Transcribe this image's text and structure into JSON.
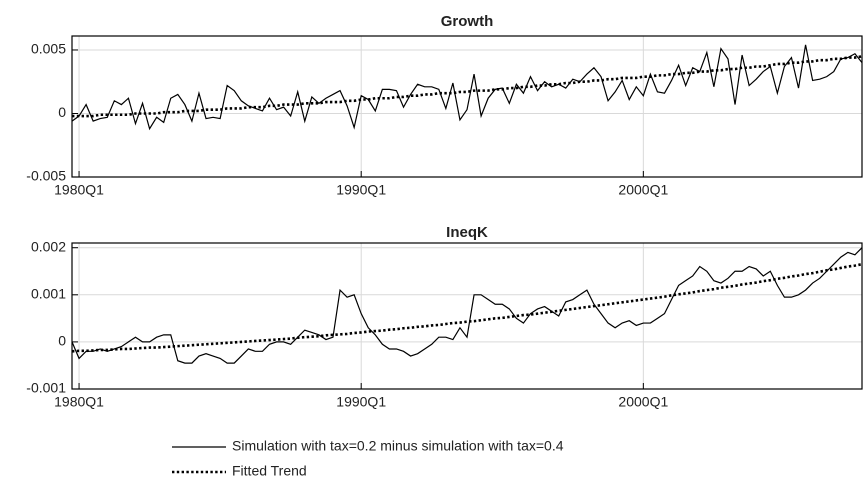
{
  "chart_data": [
    {
      "type": "line",
      "title": "Growth",
      "x": [
        1979.75,
        1980,
        1980.25,
        1980.5,
        1980.75,
        1981,
        1981.25,
        1981.5,
        1981.75,
        1982,
        1982.25,
        1982.5,
        1982.75,
        1983,
        1983.25,
        1983.5,
        1983.75,
        1984,
        1984.25,
        1984.5,
        1984.75,
        1985,
        1985.25,
        1985.5,
        1985.75,
        1986,
        1986.25,
        1986.5,
        1986.75,
        1987,
        1987.25,
        1987.5,
        1987.75,
        1988,
        1988.25,
        1988.5,
        1988.75,
        1989,
        1989.25,
        1989.5,
        1989.75,
        1990,
        1990.25,
        1990.5,
        1990.75,
        1991,
        1991.25,
        1991.5,
        1991.75,
        1992,
        1992.25,
        1992.5,
        1992.75,
        1993,
        1993.25,
        1993.5,
        1993.75,
        1994,
        1994.25,
        1994.5,
        1994.75,
        1995,
        1995.25,
        1995.5,
        1995.75,
        1996,
        1996.25,
        1996.5,
        1996.75,
        1997,
        1997.25,
        1997.5,
        1997.75,
        1998,
        1998.25,
        1998.5,
        1998.75,
        1999,
        1999.25,
        1999.5,
        1999.75,
        2000,
        2000.25,
        2000.5,
        2000.75,
        2001,
        2001.25,
        2001.5,
        2001.75,
        2002,
        2002.25,
        2002.5,
        2002.75,
        2003,
        2003.25,
        2003.5,
        2003.75,
        2004,
        2004.25,
        2004.5,
        2004.75,
        2005,
        2005.25,
        2005.5,
        2005.75,
        2006,
        2006.25,
        2006.5,
        2006.75,
        2007,
        2007.25,
        2007.5,
        2007.75
      ],
      "xlim": [
        1979.75,
        2007.75
      ],
      "xticks": [
        {
          "value": 1980,
          "label": "1980Q1"
        },
        {
          "value": 1990,
          "label": "1990Q1"
        },
        {
          "value": 2000,
          "label": "2000Q1"
        }
      ],
      "ylim": [
        -0.005,
        0.0061
      ],
      "yticks": [
        -0.005,
        0,
        0.005
      ],
      "grid": true,
      "series": [
        {
          "name": "Simulation with tax=0.2 minus simulation with tax=0.4",
          "color": "#000000",
          "style": "solid",
          "values": [
            -0.0006,
            -0.0002,
            0.0007,
            -0.0006,
            -0.0004,
            -0.0003,
            0.001,
            0.0007,
            0.0012,
            -0.0008,
            0.0008,
            -0.0012,
            -0.0003,
            -0.0007,
            0.0012,
            0.0015,
            0.0007,
            -0.0006,
            0.0016,
            -0.0004,
            -0.0003,
            -0.0004,
            0.0022,
            0.0018,
            0.001,
            0.0006,
            0.0004,
            0.0002,
            0.0012,
            0.0003,
            0.0005,
            -0.0002,
            0.0017,
            -0.0006,
            0.0013,
            0.0008,
            0.0012,
            0.0015,
            0.0018,
            0.0006,
            -0.0011,
            0.0014,
            0.0011,
            0.0002,
            0.0019,
            0.0019,
            0.0018,
            0.0005,
            0.0015,
            0.0023,
            0.0021,
            0.0021,
            0.0019,
            0.0004,
            0.0024,
            -0.0005,
            0.0003,
            0.0031,
            -0.0002,
            0.0012,
            0.0019,
            0.002,
            0.0008,
            0.0023,
            0.0016,
            0.0029,
            0.0018,
            0.0025,
            0.0021,
            0.0023,
            0.002,
            0.0027,
            0.0025,
            0.0031,
            0.0036,
            0.0029,
            0.001,
            0.0017,
            0.0026,
            0.0011,
            0.0021,
            0.0014,
            0.0031,
            0.0017,
            0.0016,
            0.0026,
            0.0038,
            0.0022,
            0.0036,
            0.0033,
            0.0048,
            0.0021,
            0.0051,
            0.0043,
            0.0007,
            0.0046,
            0.0022,
            0.0027,
            0.0033,
            0.0037,
            0.0016,
            0.0037,
            0.0044,
            0.002,
            0.0054,
            0.0026,
            0.0027,
            0.0029,
            0.0033,
            0.0043,
            0.0044,
            0.0047,
            0.004
          ]
        },
        {
          "name": "Fitted Trend",
          "color": "#000000",
          "style": "dotted",
          "values": [
            -0.0002,
            -0.0002,
            -0.0002,
            -0.0002,
            -0.0001,
            -0.0001,
            -0.0001,
            -0.0001,
            -0.0001,
            0.0,
            0.0,
            0.0,
            0.0,
            0.0001,
            0.0001,
            0.0001,
            0.0002,
            0.0002,
            0.0002,
            0.0003,
            0.0003,
            0.0003,
            0.0004,
            0.0004,
            0.0004,
            0.0005,
            0.0005,
            0.0005,
            0.0006,
            0.0006,
            0.0007,
            0.0007,
            0.0007,
            0.0008,
            0.0008,
            0.0008,
            0.0009,
            0.0009,
            0.0009,
            0.001,
            0.001,
            0.0011,
            0.0011,
            0.0012,
            0.0012,
            0.0012,
            0.0013,
            0.0013,
            0.0014,
            0.0014,
            0.0015,
            0.0015,
            0.0016,
            0.0016,
            0.0016,
            0.0017,
            0.0017,
            0.0018,
            0.0018,
            0.0018,
            0.0019,
            0.0019,
            0.002,
            0.002,
            0.0021,
            0.0021,
            0.0022,
            0.0022,
            0.0023,
            0.0023,
            0.0024,
            0.0024,
            0.0025,
            0.0025,
            0.0026,
            0.0026,
            0.0027,
            0.0027,
            0.0028,
            0.0028,
            0.0028,
            0.0029,
            0.0029,
            0.003,
            0.003,
            0.0031,
            0.0031,
            0.0032,
            0.0032,
            0.0033,
            0.0033,
            0.0034,
            0.0034,
            0.0035,
            0.0035,
            0.0036,
            0.0036,
            0.0037,
            0.0037,
            0.0038,
            0.0039,
            0.0039,
            0.004,
            0.004,
            0.0041,
            0.0041,
            0.0042,
            0.0042,
            0.0043,
            0.0043,
            0.0044,
            0.0044,
            0.0045
          ]
        }
      ]
    },
    {
      "type": "line",
      "title": "IneqK",
      "x": [
        1979.75,
        1980,
        1980.25,
        1980.5,
        1980.75,
        1981,
        1981.25,
        1981.5,
        1981.75,
        1982,
        1982.25,
        1982.5,
        1982.75,
        1983,
        1983.25,
        1983.5,
        1983.75,
        1984,
        1984.25,
        1984.5,
        1984.75,
        1985,
        1985.25,
        1985.5,
        1985.75,
        1986,
        1986.25,
        1986.5,
        1986.75,
        1987,
        1987.25,
        1987.5,
        1987.75,
        1988,
        1988.25,
        1988.5,
        1988.75,
        1989,
        1989.25,
        1989.5,
        1989.75,
        1990,
        1990.25,
        1990.5,
        1990.75,
        1991,
        1991.25,
        1991.5,
        1991.75,
        1992,
        1992.25,
        1992.5,
        1992.75,
        1993,
        1993.25,
        1993.5,
        1993.75,
        1994,
        1994.25,
        1994.5,
        1994.75,
        1995,
        1995.25,
        1995.5,
        1995.75,
        1996,
        1996.25,
        1996.5,
        1996.75,
        1997,
        1997.25,
        1997.5,
        1997.75,
        1998,
        1998.25,
        1998.5,
        1998.75,
        1999,
        1999.25,
        1999.5,
        1999.75,
        2000,
        2000.25,
        2000.5,
        2000.75,
        2001,
        2001.25,
        2001.5,
        2001.75,
        2002,
        2002.25,
        2002.5,
        2002.75,
        2003,
        2003.25,
        2003.5,
        2003.75,
        2004,
        2004.25,
        2004.5,
        2004.75,
        2005,
        2005.25,
        2005.5,
        2005.75,
        2006,
        2006.25,
        2006.5,
        2006.75,
        2007,
        2007.25,
        2007.5,
        2007.75
      ],
      "xlim": [
        1979.75,
        2007.75
      ],
      "xticks": [
        {
          "value": 1980,
          "label": "1980Q1"
        },
        {
          "value": 1990,
          "label": "1990Q1"
        },
        {
          "value": 2000,
          "label": "2000Q1"
        }
      ],
      "ylim": [
        -0.001,
        0.0021
      ],
      "yticks": [
        -0.001,
        0,
        0.001,
        0.002
      ],
      "grid": true,
      "series": [
        {
          "color": "#000000",
          "style": "solid",
          "values": [
            0,
            -0.00035,
            -0.0002,
            -0.0002,
            -0.00015,
            -0.0002,
            -0.00015,
            -0.0001,
            0,
            0.0001,
            0,
            0,
            0.0001,
            0.00015,
            0.00015,
            -0.0004,
            -0.00045,
            -0.00045,
            -0.0003,
            -0.00025,
            -0.0003,
            -0.00035,
            -0.00045,
            -0.00045,
            -0.0003,
            -0.00015,
            -0.0002,
            -0.0002,
            -5e-05,
            0,
            0,
            -5e-05,
            0.0001,
            0.00025,
            0.0002,
            0.00015,
            5e-05,
            0.0001,
            0.0011,
            0.00095,
            0.001,
            0.0006,
            0.0003,
            0.00015,
            -5e-05,
            -0.00015,
            -0.00015,
            -0.0002,
            -0.0003,
            -0.00025,
            -0.00015,
            -5e-05,
            0.0001,
            0.0001,
            5e-05,
            0.0003,
            0.0001,
            0.001,
            0.001,
            0.0009,
            0.0008,
            0.0008,
            0.0007,
            0.0005,
            0.0004,
            0.0006,
            0.0007,
            0.00075,
            0.00065,
            0.00055,
            0.00085,
            0.0009,
            0.001,
            0.0011,
            0.0008,
            0.0006,
            0.0004,
            0.0003,
            0.0004,
            0.00045,
            0.00035,
            0.0004,
            0.0004,
            0.0005,
            0.0006,
            0.0009,
            0.0012,
            0.0013,
            0.0014,
            0.0016,
            0.0015,
            0.0013,
            0.00125,
            0.00135,
            0.0015,
            0.0015,
            0.0016,
            0.00155,
            0.0014,
            0.0015,
            0.0012,
            0.00095,
            0.00095,
            0.001,
            0.0011,
            0.00125,
            0.00135,
            0.0015,
            0.00165,
            0.0018,
            0.0019,
            0.00185,
            0.002
          ]
        },
        {
          "color": "#000000",
          "style": "dotted",
          "values": [
            -0.0002,
            -0.00019,
            -0.00019,
            -0.00018,
            -0.00017,
            -0.00017,
            -0.00016,
            -0.00015,
            -0.00015,
            -0.00014,
            -0.00013,
            -0.00012,
            -0.00012,
            -0.00011,
            -0.0001,
            -9e-05,
            -8e-05,
            -7e-05,
            -6e-05,
            -5e-05,
            -4e-05,
            -3e-05,
            -2e-05,
            -1e-05,
            0,
            1e-05,
            2e-05,
            3e-05,
            4e-05,
            5e-05,
            6e-05,
            7e-05,
            9e-05,
            0.0001,
            0.00011,
            0.00012,
            0.00014,
            0.00015,
            0.00016,
            0.00017,
            0.00019,
            0.0002,
            0.00022,
            0.00023,
            0.00024,
            0.00026,
            0.00027,
            0.00029,
            0.0003,
            0.00032,
            0.00033,
            0.00035,
            0.00036,
            0.00038,
            0.0004,
            0.00041,
            0.00043,
            0.00044,
            0.00046,
            0.00048,
            0.0005,
            0.00051,
            0.00053,
            0.00055,
            0.00057,
            0.00058,
            0.0006,
            0.00062,
            0.00064,
            0.00066,
            0.00068,
            0.0007,
            0.00072,
            0.00074,
            0.00076,
            0.00078,
            0.0008,
            0.00082,
            0.00084,
            0.00086,
            0.00088,
            0.0009,
            0.00092,
            0.00094,
            0.00096,
            0.00099,
            0.00101,
            0.00103,
            0.00105,
            0.00108,
            0.0011,
            0.00112,
            0.00115,
            0.00117,
            0.00119,
            0.00122,
            0.00124,
            0.00126,
            0.00129,
            0.00131,
            0.00134,
            0.00136,
            0.00139,
            0.00141,
            0.00144,
            0.00146,
            0.00149,
            0.00152,
            0.00154,
            0.00157,
            0.0016,
            0.00162,
            0.00165
          ]
        }
      ]
    }
  ]
}
